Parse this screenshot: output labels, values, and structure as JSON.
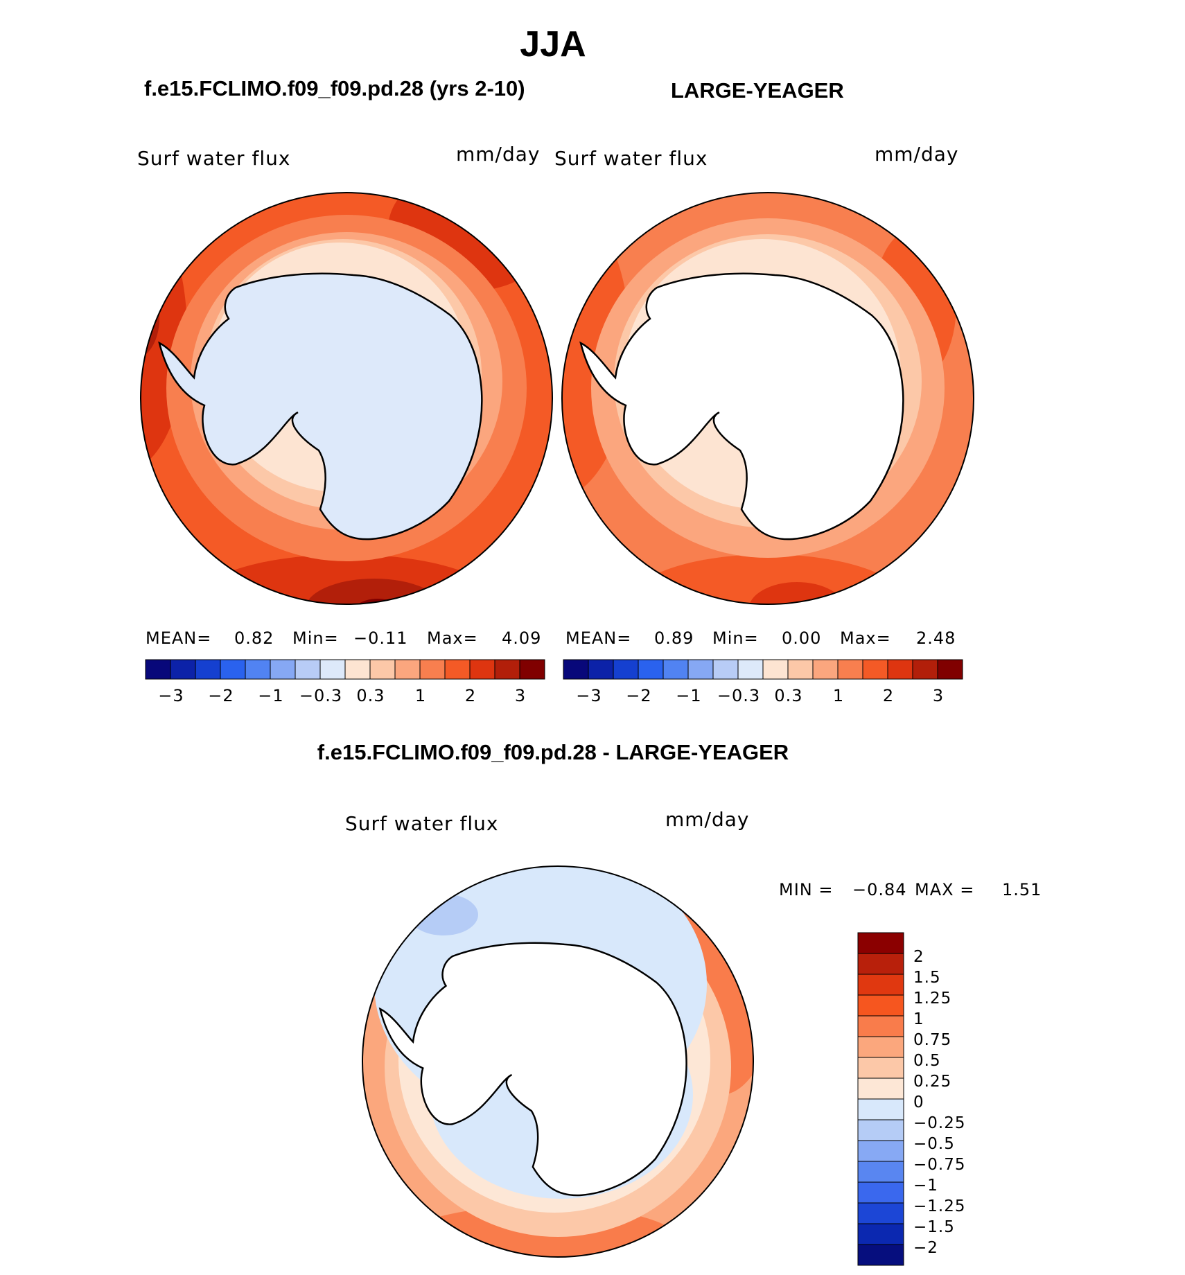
{
  "figure": {
    "title": "JJA",
    "case_title": "f.e15.FCLIMO.f09_f09.pd.28 (yrs 2-10)",
    "ref_title": "LARGE-YEAGER",
    "diff_title": "f.e15.FCLIMO.f09_f09.pd.28 - LARGE-YEAGER"
  },
  "panels": {
    "case": {
      "variable": "Surf  water  flux",
      "units": "mm/day",
      "mean_label": "MEAN=",
      "mean": "0.82",
      "min_label": "Min=",
      "min": "−0.11",
      "max_label": "Max=",
      "max": "4.09"
    },
    "ref": {
      "variable": "Surf  water  flux",
      "units": "mm/day",
      "mean_label": "MEAN=",
      "mean": "0.89",
      "min_label": "Min=",
      "min": "0.00",
      "max_label": "Max=",
      "max": "2.48"
    },
    "diff": {
      "variable": "Surf  water  flux",
      "units": "mm/day",
      "min_label": "MIN =",
      "min": "−0.84",
      "max_label": "MAX =",
      "max": "1.51"
    }
  },
  "colorbar_main": {
    "tick_labels": [
      "−3",
      "−2",
      "−1",
      "−0.3",
      "0.3",
      "1",
      "2",
      "3"
    ],
    "colors": [
      "#08087a",
      "#0c22a8",
      "#1540d0",
      "#2a62ee",
      "#5183f2",
      "#86a8f4",
      "#b8ccf6",
      "#dde9fa",
      "#fde4d2",
      "#fcc8a8",
      "#fba67e",
      "#f87f4f",
      "#f45a26",
      "#de3510",
      "#b21f0a",
      "#800000"
    ]
  },
  "colorbar_diff": {
    "tick_labels": [
      "2",
      "1.5",
      "1.25",
      "1",
      "0.75",
      "0.5",
      "0.25",
      "0",
      "−0.25",
      "−0.5",
      "−0.75",
      "−1",
      "−1.25",
      "−1.5",
      "−2"
    ],
    "colors": [
      "#8b0000",
      "#b8200b",
      "#e03810",
      "#f6561f",
      "#f97c4b",
      "#fba77d",
      "#fcc8a8",
      "#fde7d6",
      "#d8e8fb",
      "#b5ccf6",
      "#87a9f4",
      "#5986f1",
      "#3a68ee",
      "#1c46d6",
      "#0b28b0",
      "#060e7e"
    ]
  },
  "map_colors": {
    "land": "#ffffff",
    "coast": "#000000"
  }
}
